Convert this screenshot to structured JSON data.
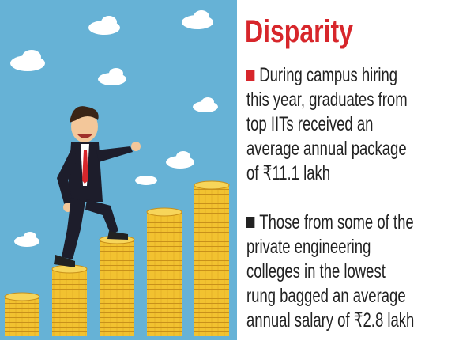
{
  "header": {
    "title": "Disparity"
  },
  "points": [
    {
      "lines": [
        "During campus hiring",
        "this year, graduates from",
        "top IITs received an",
        "average annual package",
        "of ₹11.1 lakh"
      ]
    },
    {
      "lines": [
        "Those from some of the",
        "private engineering",
        "colleges in the lowest",
        "rung bagged an average",
        "annual salary of ₹2.8 lakh"
      ]
    }
  ]
}
